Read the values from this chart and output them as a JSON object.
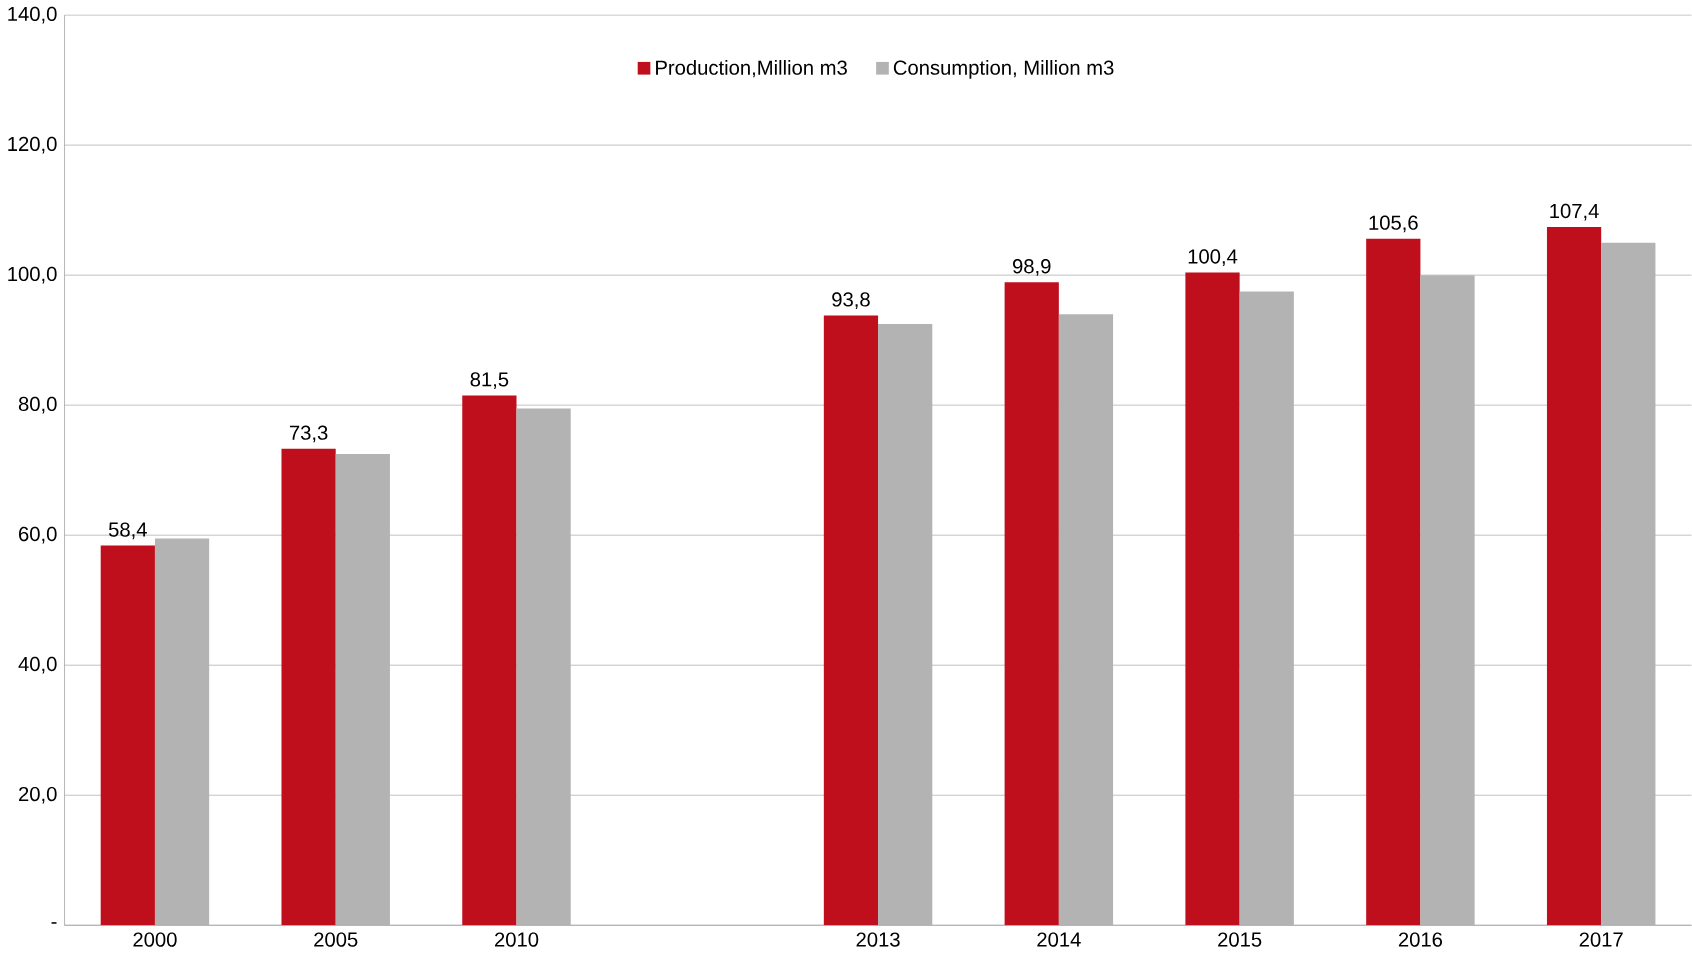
{
  "chart_data": {
    "type": "bar",
    "categories": [
      "2000",
      "2005",
      "2010",
      null,
      "2013",
      "2014",
      "2015",
      "2016",
      "2017"
    ],
    "series": [
      {
        "name": "Production,Million m3",
        "color": "#c00f1c",
        "values": [
          58.4,
          73.3,
          81.5,
          null,
          93.8,
          98.9,
          100.4,
          105.6,
          107.4
        ],
        "value_labels": [
          "58,4",
          "73,3",
          "81,5",
          null,
          "93,8",
          "98,9",
          "100,4",
          "105,6",
          "107,4"
        ]
      },
      {
        "name": "Consumption, Million m3",
        "color": "#b3b3b3",
        "values": [
          59.5,
          72.5,
          79.5,
          null,
          92.5,
          94,
          97.5,
          100,
          105
        ]
      }
    ],
    "ylim": [
      0,
      140
    ],
    "yticks": [
      {
        "value": 0,
        "label": "-"
      },
      {
        "value": 20,
        "label": "20,0"
      },
      {
        "value": 40,
        "label": "40,0"
      },
      {
        "value": 60,
        "label": "60,0"
      },
      {
        "value": 80,
        "label": "80,0"
      },
      {
        "value": 100,
        "label": "100,0"
      },
      {
        "value": 120,
        "label": "120,0"
      },
      {
        "value": 140,
        "label": "140,0"
      }
    ],
    "grid": "y",
    "legend": "top"
  }
}
